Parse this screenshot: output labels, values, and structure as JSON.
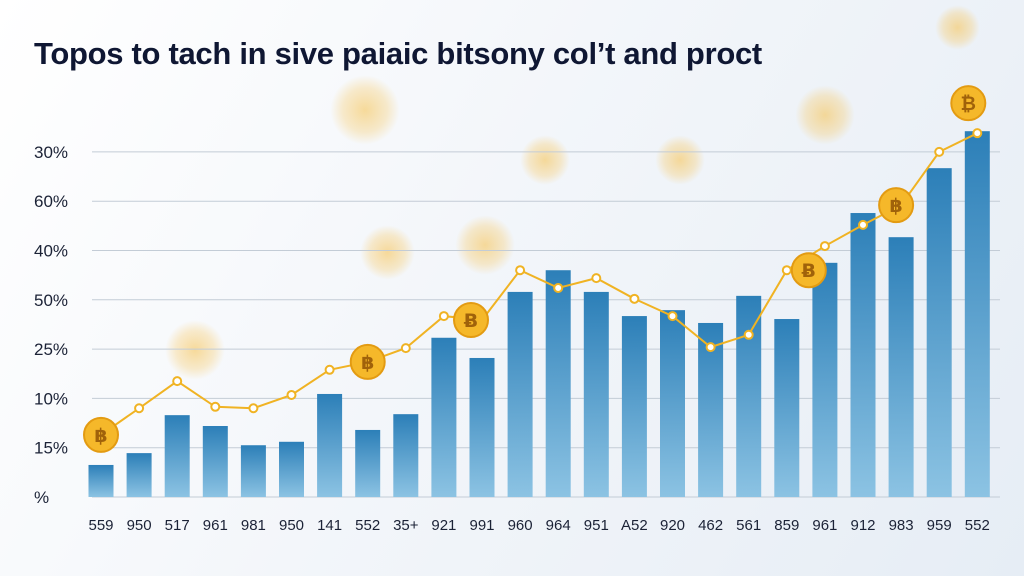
{
  "chart_data": {
    "type": "bar",
    "title": "Topos to tach in sive paiaic bitsony col’t and proct",
    "xlabel": "",
    "ylabel": "",
    "y_tick_labels": [
      "%",
      "15%",
      "10%",
      "25%",
      "50%",
      "40%",
      "60%",
      "30%"
    ],
    "ylim": [
      0,
      7.5
    ],
    "grid": true,
    "categories": [
      "559",
      "950",
      "517",
      "961",
      "981",
      "950",
      "141",
      "552",
      "35+",
      "921",
      "991",
      "960",
      "964",
      "951",
      "A52",
      "920",
      "462",
      "561",
      "859",
      "961",
      "912",
      "983",
      "959",
      "552"
    ],
    "series": [
      {
        "name": "bars",
        "type": "bar",
        "color": "#3b8fc4",
        "values": [
          0.65,
          0.89,
          1.66,
          1.44,
          1.05,
          1.12,
          2.09,
          1.36,
          1.68,
          3.23,
          2.82,
          4.16,
          4.6,
          4.16,
          3.67,
          3.79,
          3.53,
          4.08,
          3.61,
          4.75,
          5.76,
          5.27,
          6.67,
          7.42
        ]
      },
      {
        "name": "line",
        "type": "line",
        "color": "#f0b323",
        "values": [
          1.26,
          1.8,
          2.35,
          1.83,
          1.8,
          2.07,
          2.58,
          2.74,
          3.02,
          3.67,
          3.59,
          4.6,
          4.24,
          4.44,
          4.02,
          3.67,
          3.04,
          3.29,
          4.6,
          5.09,
          5.52,
          5.92,
          7.0,
          7.38
        ]
      }
    ],
    "coin_markers_at": [
      0,
      7,
      10,
      18,
      21,
      23
    ],
    "coin_symbols": [
      "฿",
      "฿",
      "Ƀ",
      "Ƀ",
      "฿",
      "₿"
    ]
  }
}
